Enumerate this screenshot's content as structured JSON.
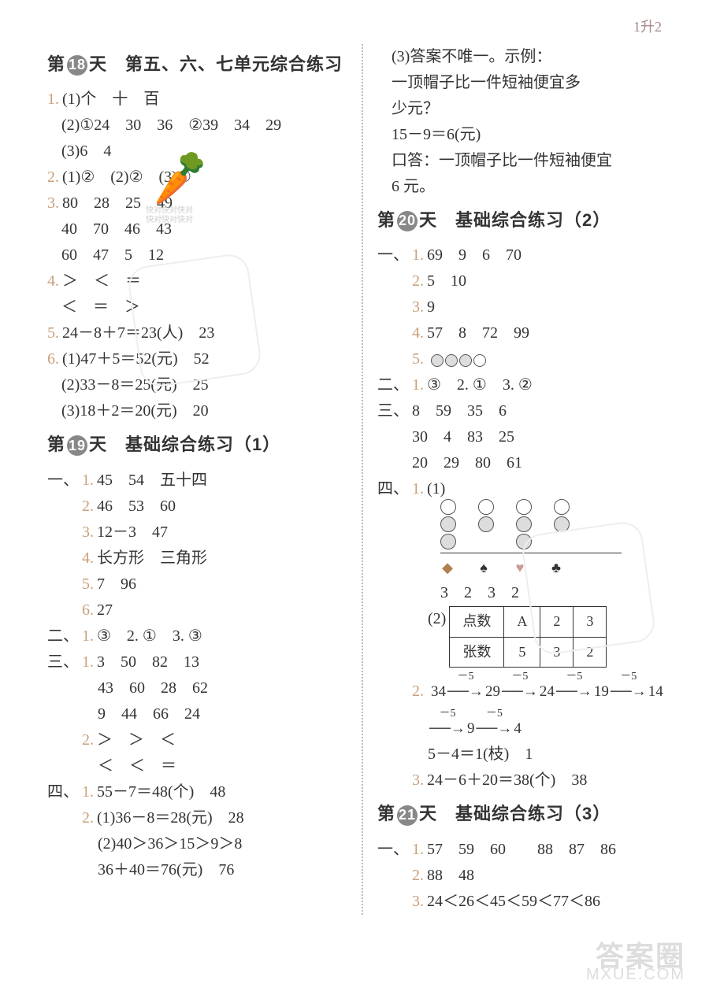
{
  "top_label": "1升2",
  "left": {
    "day18": {
      "prefix": "第",
      "num": "18",
      "suffix": "天　第五、六、七单元综合练习",
      "q1_1": "(1)个　十　百",
      "q1_2": "(2)①24　30　36　②39　34　29",
      "q1_3": "(3)6　4",
      "q2": "(1)②　(2)②　(3)①",
      "q3a": "80　28　25　49",
      "q3b": "40　70　46　43",
      "q3c": "60　47　5　12",
      "q4a": "＞　＜　＝",
      "q4b": "＜　＝　＞",
      "q5": "24－8＋7＝23(人)　23",
      "q6_1": "(1)47＋5＝52(元)　52",
      "q6_2": "(2)33－8＝25(元)　25",
      "q6_3": "(3)18＋2＝20(元)　20"
    },
    "day19": {
      "prefix": "第",
      "num": "19",
      "suffix": "天　基础综合练习（1）",
      "s1_1": "45　54　五十四",
      "s1_2": "46　53　60",
      "s1_3": "12－3　47",
      "s1_4": "长方形　三角形",
      "s1_5": "7　96",
      "s1_6": "27",
      "s2": "③　2. ①　3. ③",
      "s3_1a": "3　50　82　13",
      "s3_1b": "43　60　28　62",
      "s3_1c": "9　44　66　24",
      "s3_2a": "＞　＞　＜",
      "s3_2b": "＜　＜　＝",
      "s4_1": "55－7＝48(个)　48",
      "s4_2a": "(1)36－8＝28(元)　28",
      "s4_2b": "(2)40＞36＞15＞9＞8",
      "s4_2c": "36＋40＝76(元)　76"
    }
  },
  "right": {
    "cont": {
      "l1": "(3)答案不唯一。示例：",
      "l2": "一顶帽子比一件短袖便宜多",
      "l3": "少元？",
      "l4": "15－9＝6(元)",
      "l5": "口答：一顶帽子比一件短袖便宜",
      "l6": "6 元。"
    },
    "day20": {
      "prefix": "第",
      "num": "20",
      "suffix": "天　基础综合练习（2）",
      "s1_1": "69　9　6　70",
      "s1_2": "5　10",
      "s1_3": "9",
      "s1_4": "57　8　72　99",
      "s1_5_label": "5.",
      "s2": "③　2. ①　3. ②",
      "s3a": "8　59　35　6",
      "s3b": "30　4　83　25",
      "s3c": "20　29　80　61",
      "s4_1_vals": "3　2　3　2",
      "s4_1_table_h1": "点数",
      "s4_1_table_h2": "张数",
      "s4_1_c1": "A",
      "s4_1_c2": "2",
      "s4_1_c3": "3",
      "s4_1_d1": "5",
      "s4_1_d2": "3",
      "s4_1_d3": "2",
      "s4_2_seq1_n": [
        "34",
        "29",
        "24",
        "19",
        "14"
      ],
      "s4_2_seq1_lbl": "－5",
      "s4_2_seq2_n": [
        "9",
        "4"
      ],
      "s4_2_seq2_lbl": "－5",
      "s4_2_res": "5－4＝1(枝)　1",
      "s4_3": "24－6＋20＝38(个)　38"
    },
    "day21": {
      "prefix": "第",
      "num": "21",
      "suffix": "天　基础综合练习（3）",
      "s1_1": "57　59　60　　88　87　86",
      "s1_2": "88　48",
      "s1_3": "24＜26＜45＜59＜77＜86"
    }
  },
  "suits": {
    "diamond": "◆",
    "spade": "♠",
    "heart": "♥",
    "club": "♣"
  },
  "wm_small": "快对快对快对",
  "bottom1": "答案圈",
  "bottom2": "MXUE.COM",
  "circles_q5": [
    true,
    true,
    true,
    false
  ],
  "chart": {
    "cols": [
      [
        false,
        true,
        true
      ],
      [
        false,
        true
      ],
      [
        false,
        true,
        true
      ],
      [
        false,
        true
      ]
    ]
  }
}
